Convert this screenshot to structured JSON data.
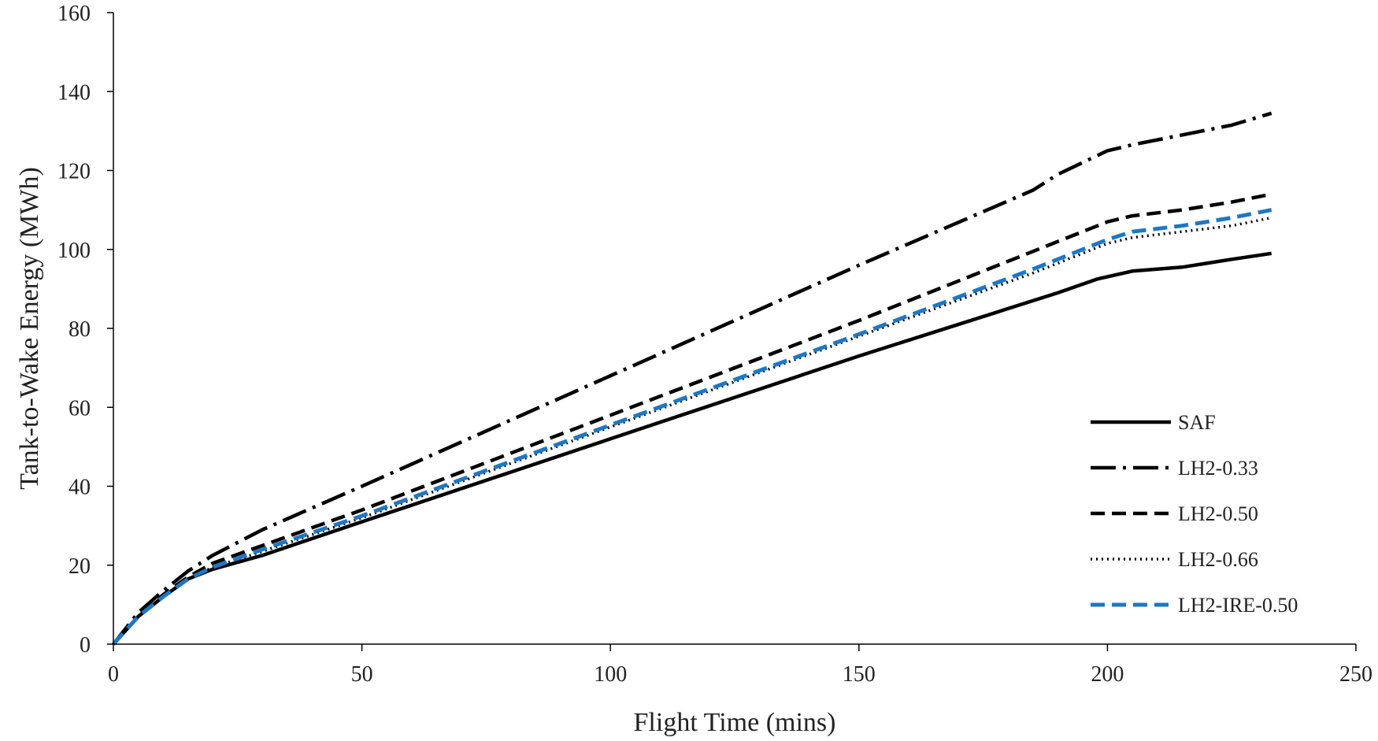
{
  "chart_data": {
    "type": "line",
    "title": "",
    "xlabel": "Flight Time (mins)",
    "ylabel": "Tank-to-Wake Energy (MWh)",
    "xlim": [
      0,
      250
    ],
    "ylim": [
      0,
      160
    ],
    "xticks": [
      0,
      50,
      100,
      150,
      200,
      250
    ],
    "yticks": [
      0,
      20,
      40,
      60,
      80,
      100,
      120,
      140,
      160
    ],
    "grid": false,
    "legend_position": "right",
    "series": [
      {
        "name": "SAF",
        "color": "#000000",
        "style": "solid",
        "x": [
          0,
          5,
          10,
          15,
          20,
          30,
          50,
          100,
          150,
          185,
          190,
          198,
          205,
          215,
          225,
          233
        ],
        "y": [
          0,
          7,
          12,
          16.5,
          19,
          22.5,
          31,
          52,
          73,
          87,
          89,
          92.5,
          94.5,
          95.5,
          97.5,
          99
        ]
      },
      {
        "name": "LH2-0.33",
        "color": "#000000",
        "style": "dashdot",
        "x": [
          0,
          5,
          10,
          15,
          20,
          30,
          50,
          100,
          150,
          185,
          190,
          200,
          205,
          215,
          225,
          233
        ],
        "y": [
          0,
          8,
          13.5,
          18.5,
          22.5,
          29,
          40,
          68,
          96,
          115,
          119,
          125,
          126.5,
          129,
          131.5,
          134.5
        ]
      },
      {
        "name": "LH2-0.50",
        "color": "#000000",
        "style": "dashed",
        "x": [
          0,
          5,
          10,
          15,
          20,
          30,
          50,
          100,
          150,
          185,
          190,
          200,
          205,
          215,
          225,
          233
        ],
        "y": [
          0,
          7,
          12.5,
          17,
          20.5,
          25,
          34,
          58,
          82,
          99.5,
          102,
          107,
          108.5,
          110,
          112,
          114
        ]
      },
      {
        "name": "LH2-0.66",
        "color": "#000000",
        "style": "dotted",
        "x": [
          0,
          5,
          10,
          15,
          20,
          30,
          50,
          100,
          150,
          185,
          190,
          200,
          205,
          215,
          225,
          233
        ],
        "y": [
          0,
          7,
          12,
          16.5,
          19.5,
          23.5,
          32,
          55,
          78,
          94,
          96.5,
          101.5,
          103,
          104.5,
          106,
          108
        ]
      },
      {
        "name": "LH2-IRE-0.50",
        "color": "#1f77c4",
        "style": "dashed-blue",
        "x": [
          0,
          5,
          10,
          15,
          20,
          30,
          50,
          100,
          150,
          185,
          190,
          200,
          205,
          215,
          225,
          233
        ],
        "y": [
          0,
          7,
          12,
          16.5,
          19.5,
          24,
          32.5,
          55.5,
          78.5,
          95,
          97.5,
          102.5,
          104.5,
          106,
          108,
          110
        ]
      }
    ]
  }
}
